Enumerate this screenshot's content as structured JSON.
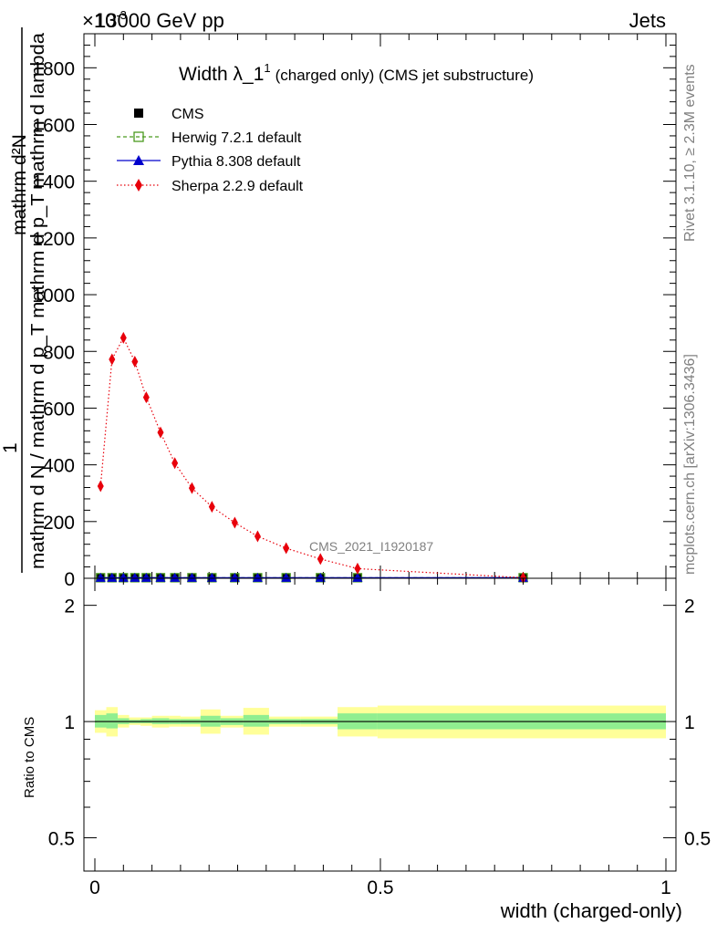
{
  "header": {
    "beam": "13000 GeV pp",
    "process": "Jets",
    "exponent_label": "×10",
    "exponent_power": "-3"
  },
  "side_labels": {
    "rivet": "Rivet 3.1.10, ≥ 2.3M events",
    "mcplots": "mcplots.cern.ch [arXiv:1306.3436]"
  },
  "watermark": "CMS_2021_I1920187",
  "chart_data": [
    {
      "type": "line",
      "title": "Width λ_1¹ (charged only) (CMS jet substructure)",
      "title_main": "Width λ_1",
      "title_sup": "1",
      "title_rest": "(charged only) (CMS jet substructure)",
      "ylabel_top": "mathrm d²N",
      "ylabel_bottom": "mathrm d N / mathrm d p_T mathrm d p_T mathrm d lambda",
      "ylabel_one": "1",
      "xlim": [
        0,
        1
      ],
      "ylim": [
        0,
        1920
      ],
      "y_unit_scale": "×10^-3",
      "yticks": [
        0,
        200,
        400,
        600,
        800,
        1000,
        1200,
        1400,
        1600,
        1800
      ],
      "ytick_labels": [
        "0",
        "200",
        "400",
        "600",
        "800",
        "1000",
        "1200",
        "1400",
        "1600",
        "1800"
      ],
      "legend_position": "top-left",
      "series": [
        {
          "name": "CMS",
          "color": "#000000",
          "marker": "square",
          "x": [
            0.01,
            0.03,
            0.05,
            0.07,
            0.09,
            0.115,
            0.14,
            0.17,
            0.205,
            0.245,
            0.285,
            0.335,
            0.395,
            0.46,
            0.75
          ],
          "y": [
            2,
            2,
            2,
            2,
            2,
            2,
            2,
            2,
            2,
            2,
            2,
            2,
            2,
            2,
            2
          ]
        },
        {
          "name": "Herwig 7.2.1 default",
          "color": "#4a9a1f",
          "marker": "open-square",
          "line": "dashed",
          "x": [
            0.01,
            0.03,
            0.05,
            0.07,
            0.09,
            0.115,
            0.14,
            0.17,
            0.205,
            0.245,
            0.285,
            0.335,
            0.395,
            0.46,
            0.75
          ],
          "y": [
            2,
            2,
            2,
            2,
            2,
            2,
            2,
            2,
            2,
            2,
            2,
            2,
            2,
            2,
            2
          ]
        },
        {
          "name": "Pythia 8.308 default",
          "color": "#0000cc",
          "marker": "triangle",
          "line": "solid",
          "x": [
            0.01,
            0.03,
            0.05,
            0.07,
            0.09,
            0.115,
            0.14,
            0.17,
            0.205,
            0.245,
            0.285,
            0.335,
            0.395,
            0.46,
            0.75
          ],
          "y": [
            2,
            2,
            2,
            2,
            2,
            2,
            2,
            2,
            2,
            2,
            2,
            2,
            2,
            2,
            2
          ]
        },
        {
          "name": "Sherpa 2.2.9 default",
          "color": "#e8000b",
          "marker": "diamond",
          "line": "dotted",
          "x": [
            0.01,
            0.03,
            0.05,
            0.07,
            0.09,
            0.115,
            0.14,
            0.17,
            0.205,
            0.245,
            0.285,
            0.335,
            0.395,
            0.46,
            0.75
          ],
          "y": [
            325,
            772,
            848,
            764,
            638,
            514,
            406,
            318,
            252,
            196,
            148,
            106,
            68,
            34,
            2
          ]
        }
      ]
    },
    {
      "type": "area",
      "ylabel": "Ratio to CMS",
      "xlabel": "width (charged-only)",
      "xlim": [
        0,
        1
      ],
      "xticks": [
        0,
        0.5,
        1
      ],
      "xtick_labels": [
        "0",
        "0.5",
        "1"
      ],
      "ylim": [
        0.41,
        2.35
      ],
      "y_scale": "log",
      "yticks": [
        0.5,
        1,
        2
      ],
      "ytick_labels": [
        "0.5",
        "1",
        "2"
      ],
      "reference_line": 1,
      "bands": {
        "inner_color": "#90ee90",
        "outer_color": "#ffff99",
        "bins": [
          {
            "x_lo": 0.0,
            "x_hi": 0.02,
            "inner": [
              0.965,
              1.04
            ],
            "outer": [
              0.935,
              1.07
            ]
          },
          {
            "x_lo": 0.02,
            "x_hi": 0.04,
            "inner": [
              0.96,
              1.05
            ],
            "outer": [
              0.915,
              1.09
            ]
          },
          {
            "x_lo": 0.04,
            "x_hi": 0.06,
            "inner": [
              0.985,
              1.02
            ],
            "outer": [
              0.965,
              1.04
            ]
          },
          {
            "x_lo": 0.06,
            "x_hi": 0.08,
            "inner": [
              0.99,
              1.01
            ],
            "outer": [
              0.98,
              1.025
            ]
          },
          {
            "x_lo": 0.08,
            "x_hi": 0.1,
            "inner": [
              0.99,
              1.015
            ],
            "outer": [
              0.975,
              1.025
            ]
          },
          {
            "x_lo": 0.1,
            "x_hi": 0.13,
            "inner": [
              0.985,
              1.02
            ],
            "outer": [
              0.965,
              1.035
            ]
          },
          {
            "x_lo": 0.13,
            "x_hi": 0.15,
            "inner": [
              0.985,
              1.015
            ],
            "outer": [
              0.97,
              1.035
            ]
          },
          {
            "x_lo": 0.15,
            "x_hi": 0.185,
            "inner": [
              0.985,
              1.015
            ],
            "outer": [
              0.97,
              1.03
            ]
          },
          {
            "x_lo": 0.185,
            "x_hi": 0.22,
            "inner": [
              0.97,
              1.035
            ],
            "outer": [
              0.93,
              1.075
            ]
          },
          {
            "x_lo": 0.22,
            "x_hi": 0.26,
            "inner": [
              0.98,
              1.02
            ],
            "outer": [
              0.965,
              1.035
            ]
          },
          {
            "x_lo": 0.26,
            "x_hi": 0.305,
            "inner": [
              0.97,
              1.04
            ],
            "outer": [
              0.925,
              1.085
            ]
          },
          {
            "x_lo": 0.305,
            "x_hi": 0.36,
            "inner": [
              0.985,
              1.015
            ],
            "outer": [
              0.97,
              1.03
            ]
          },
          {
            "x_lo": 0.36,
            "x_hi": 0.425,
            "inner": [
              0.985,
              1.015
            ],
            "outer": [
              0.97,
              1.03
            ]
          },
          {
            "x_lo": 0.425,
            "x_hi": 0.495,
            "inner": [
              0.955,
              1.05
            ],
            "outer": [
              0.915,
              1.09
            ]
          },
          {
            "x_lo": 0.495,
            "x_hi": 1.0,
            "inner": [
              0.955,
              1.05
            ],
            "outer": [
              0.905,
              1.1
            ]
          }
        ]
      }
    }
  ]
}
